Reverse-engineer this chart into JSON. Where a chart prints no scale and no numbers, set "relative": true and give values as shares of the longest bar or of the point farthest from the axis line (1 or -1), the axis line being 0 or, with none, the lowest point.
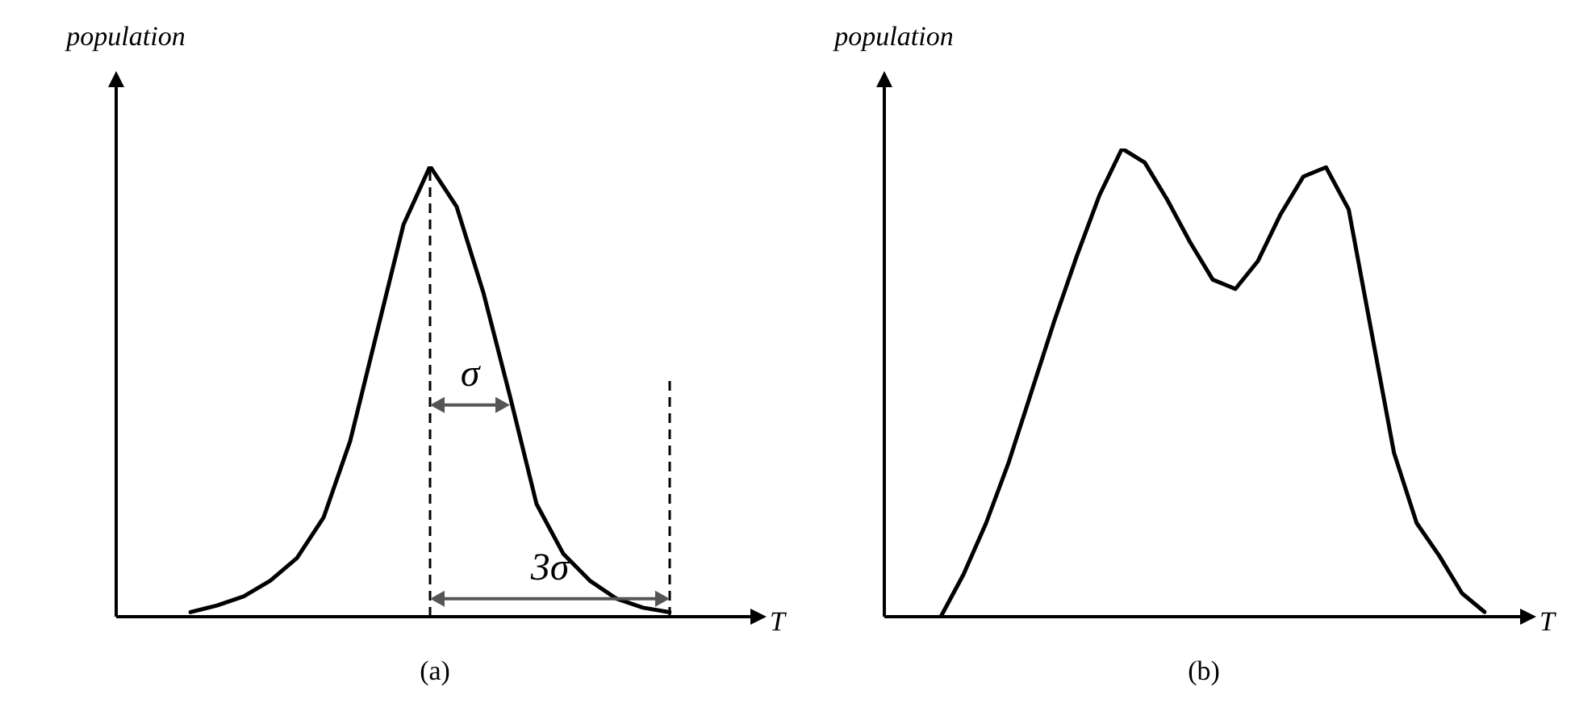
{
  "chart_data": [
    {
      "type": "line",
      "title": "(a)",
      "xlabel": "T",
      "ylabel": "population",
      "relative": true,
      "tick_labels": false,
      "marker": "none",
      "categories": [
        null,
        null,
        null,
        null,
        null,
        null,
        null,
        null,
        null,
        null,
        null,
        null,
        null,
        null,
        null,
        null,
        null,
        null,
        null
      ],
      "series": [
        {
          "color": "#000000",
          "values": [
            0.01,
            0.025,
            0.045,
            0.08,
            0.13,
            0.22,
            0.39,
            0.63,
            0.87,
            1,
            0.91,
            0.72,
            0.49,
            0.25,
            0.14,
            0.08,
            0.04,
            0.02,
            0.01
          ]
        }
      ],
      "annotations": [
        "σ",
        "3σ"
      ]
    },
    {
      "type": "line",
      "title": "(b)",
      "xlabel": "T",
      "ylabel": "population",
      "relative": true,
      "tick_labels": false,
      "marker": "none",
      "categories": [
        null,
        null,
        null,
        null,
        null,
        null,
        null,
        null,
        null,
        null,
        null,
        null,
        null,
        null,
        null,
        null,
        null,
        null,
        null,
        null,
        null,
        null,
        null,
        null,
        null
      ],
      "series": [
        {
          "color": "#000000",
          "values": [
            0,
            0.09,
            0.2,
            0.33,
            0.48,
            0.63,
            0.77,
            0.9,
            1,
            0.97,
            0.89,
            0.8,
            0.72,
            0.7,
            0.76,
            0.86,
            0.94,
            0.96,
            0.87,
            0.61,
            0.35,
            0.2,
            0.13,
            0.05,
            0.01
          ]
        }
      ]
    }
  ]
}
